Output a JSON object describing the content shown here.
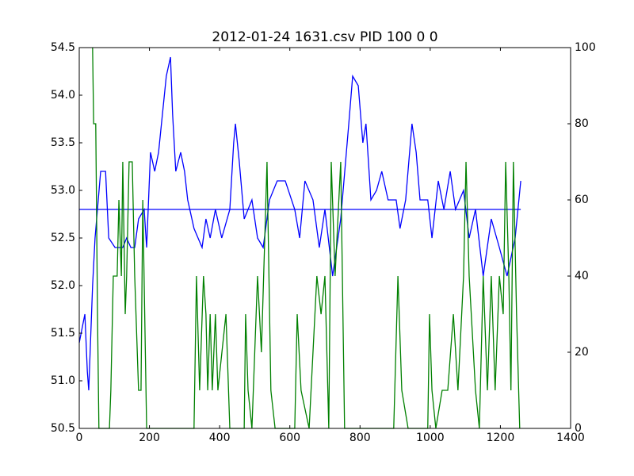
{
  "chart_data": {
    "type": "line",
    "title": "2012-01-24 1631.csv PID 100 0 0",
    "xlim": [
      0,
      1400
    ],
    "xticks": [
      0,
      200,
      400,
      600,
      800,
      1000,
      1200,
      1400
    ],
    "ylim": [
      50.5,
      54.5
    ],
    "yticks": [
      50.5,
      {
        "value": 51,
        "label": "51.0"
      },
      51.5,
      {
        "value": 52,
        "label": "52.0"
      },
      52.5,
      {
        "value": 53,
        "label": "53.0"
      },
      53.5,
      {
        "value": 54,
        "label": "54.0"
      },
      54.5
    ],
    "y2lim": [
      0,
      100
    ],
    "y2ticks": [
      0,
      20,
      40,
      60,
      80,
      100
    ],
    "series": [
      {
        "color": "#0000ff",
        "x": [
          0,
          16,
          23,
          27,
          38,
          45,
          61,
          75,
          84,
          102,
          124,
          135,
          147,
          158,
          169,
          185,
          192,
          203,
          215,
          226,
          237,
          248,
          260,
          266,
          275,
          289,
          300,
          309,
          327,
          350,
          361,
          373,
          388,
          406,
          429,
          440,
          445,
          456,
          470,
          492,
          508,
          524,
          542,
          564,
          587,
          614,
          628,
          643,
          666,
          684,
          700,
          722,
          745,
          768,
          779,
          795,
          808,
          817,
          831,
          847,
          862,
          880,
          903,
          914,
          930,
          948,
          960,
          971,
          993,
          1005,
          1023,
          1039,
          1057,
          1072,
          1095,
          1111,
          1129,
          1151,
          1174,
          1197,
          1219,
          1242,
          1258
        ],
        "values": [
          51.4,
          51.7,
          51.1,
          50.9,
          52.0,
          52.5,
          53.2,
          53.2,
          52.5,
          52.4,
          52.4,
          52.5,
          52.4,
          52.4,
          52.7,
          52.8,
          52.4,
          53.4,
          53.2,
          53.4,
          53.8,
          54.2,
          54.4,
          53.8,
          53.2,
          53.4,
          53.2,
          52.9,
          52.6,
          52.4,
          52.7,
          52.5,
          52.8,
          52.5,
          52.8,
          53.5,
          53.7,
          53.3,
          52.7,
          52.9,
          52.5,
          52.4,
          52.9,
          53.1,
          53.1,
          52.8,
          52.5,
          53.1,
          52.9,
          52.4,
          52.8,
          52.1,
          52.7,
          53.7,
          54.2,
          54.1,
          53.5,
          53.7,
          52.9,
          53.0,
          53.2,
          52.9,
          52.9,
          52.6,
          52.9,
          53.7,
          53.4,
          52.9,
          52.9,
          52.5,
          53.1,
          52.8,
          53.2,
          52.8,
          53.0,
          52.5,
          52.8,
          52.1,
          52.7,
          52.4,
          52.1,
          52.5,
          53.1
        ]
      },
      {
        "color": "#0000ff",
        "x": [
          0,
          1258
        ],
        "values": [
          52.8,
          52.8
        ]
      },
      {
        "color": "#008000",
        "axis": "y2",
        "x": [
          38,
          41,
          47,
          52,
          56,
          86,
          90,
          97,
          108,
          113,
          120,
          124,
          131,
          135,
          142,
          151,
          158,
          169,
          176,
          181,
          192,
          327,
          334,
          343,
          354,
          361,
          366,
          373,
          379,
          388,
          395,
          418,
          429,
          470,
          474,
          481,
          492,
          508,
          519,
          535,
          546,
          558,
          614,
          621,
          632,
          655,
          677,
          689,
          700,
          711,
          718,
          729,
          745,
          756,
          896,
          908,
          919,
          937,
          993,
          998,
          1005,
          1016,
          1034,
          1050,
          1066,
          1079,
          1095,
          1102,
          1111,
          1129,
          1140,
          1151,
          1163,
          1174,
          1185,
          1197,
          1208,
          1215,
          1224,
          1230,
          1237,
          1246,
          1255
        ],
        "values": [
          100,
          80,
          80,
          30,
          0,
          0,
          10,
          40,
          40,
          60,
          40,
          70,
          30,
          40,
          70,
          70,
          40,
          10,
          10,
          60,
          0,
          0,
          40,
          10,
          40,
          30,
          10,
          30,
          10,
          30,
          10,
          30,
          0,
          0,
          30,
          10,
          0,
          40,
          20,
          70,
          10,
          0,
          0,
          30,
          10,
          0,
          40,
          30,
          40,
          0,
          70,
          40,
          70,
          0,
          0,
          40,
          10,
          0,
          0,
          30,
          10,
          0,
          10,
          10,
          30,
          10,
          40,
          70,
          40,
          10,
          0,
          40,
          10,
          40,
          10,
          40,
          30,
          70,
          40,
          10,
          70,
          30,
          0
        ]
      }
    ]
  }
}
